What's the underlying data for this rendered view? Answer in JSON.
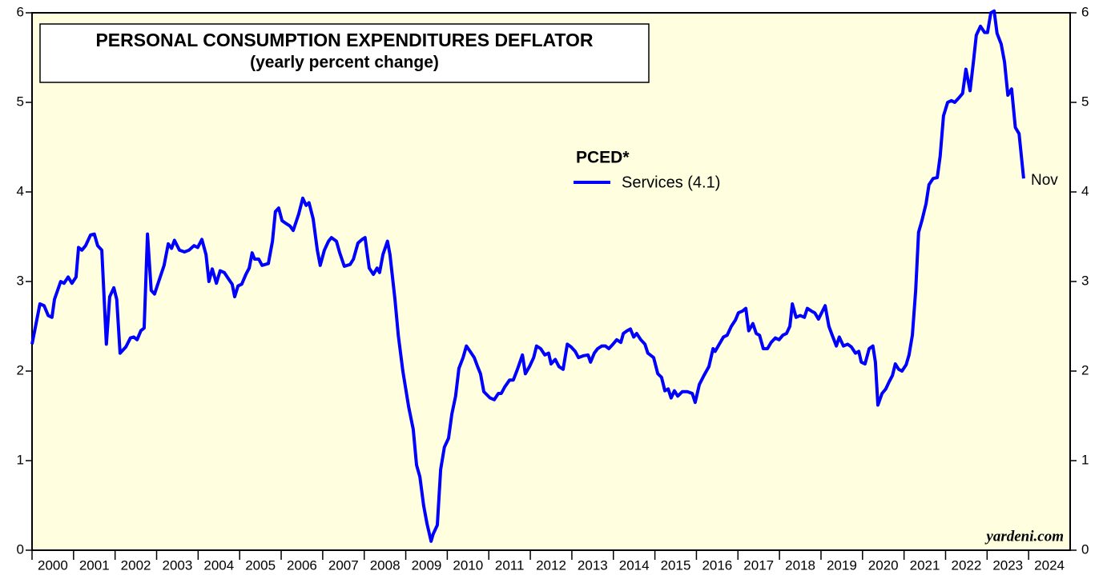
{
  "chart_data": {
    "type": "line",
    "title": "PERSONAL CONSUMPTION EXPENDITURES DEFLATOR",
    "subtitle": "(yearly percent change)",
    "legend_title": "PCED*",
    "annotations": [
      "Nov",
      "yardeni.com"
    ],
    "xlim": [
      2000,
      2025
    ],
    "xticks": [
      2000,
      2001,
      2002,
      2003,
      2004,
      2005,
      2006,
      2007,
      2008,
      2009,
      2010,
      2011,
      2012,
      2013,
      2014,
      2015,
      2016,
      2017,
      2018,
      2019,
      2020,
      2021,
      2022,
      2023,
      2024
    ],
    "ylim": [
      0,
      6
    ],
    "yticks": [
      0,
      1,
      2,
      3,
      4,
      5,
      6
    ],
    "y2lim": [
      0,
      6
    ],
    "y2ticks": [
      0,
      1,
      2,
      3,
      4,
      5,
      6
    ],
    "x": [
      2000.0,
      2000.19,
      2000.29,
      2000.39,
      2000.48,
      2000.54,
      2000.69,
      2000.77,
      2000.87,
      2000.96,
      2001.06,
      2001.12,
      2001.2,
      2001.29,
      2001.41,
      2001.5,
      2001.58,
      2001.68,
      2001.79,
      2001.87,
      2001.97,
      2002.04,
      2002.12,
      2002.26,
      2002.37,
      2002.45,
      2002.53,
      2002.62,
      2002.7,
      2002.78,
      2002.87,
      2002.95,
      2003.05,
      2003.18,
      2003.28,
      2003.36,
      2003.43,
      2003.55,
      2003.67,
      2003.78,
      2003.9,
      2003.99,
      2004.09,
      2004.19,
      2004.26,
      2004.34,
      2004.44,
      2004.53,
      2004.63,
      2004.73,
      2004.82,
      2004.88,
      2004.96,
      2005.05,
      2005.15,
      2005.23,
      2005.3,
      2005.36,
      2005.46,
      2005.54,
      2005.69,
      2005.79,
      2005.86,
      2005.94,
      2006.02,
      2006.11,
      2006.21,
      2006.29,
      2006.42,
      2006.52,
      2006.6,
      2006.67,
      2006.77,
      2006.87,
      2006.94,
      2007.04,
      2007.14,
      2007.21,
      2007.33,
      2007.41,
      2007.52,
      2007.66,
      2007.74,
      2007.85,
      2007.95,
      2008.02,
      2008.12,
      2008.22,
      2008.31,
      2008.37,
      2008.45,
      2008.56,
      2008.62,
      2008.74,
      2008.82,
      2008.93,
      2009.07,
      2009.18,
      2009.26,
      2009.34,
      2009.43,
      2009.51,
      2009.61,
      2009.66,
      2009.76,
      2009.84,
      2009.93,
      2010.03,
      2010.11,
      2010.2,
      2010.28,
      2010.38,
      2010.46,
      2010.55,
      2010.65,
      2010.73,
      2010.8,
      2010.88,
      2011.03,
      2011.13,
      2011.23,
      2011.3,
      2011.38,
      2011.5,
      2011.59,
      2011.69,
      2011.81,
      2011.88,
      2011.98,
      2012.08,
      2012.15,
      2012.25,
      2012.35,
      2012.44,
      2012.5,
      2012.6,
      2012.69,
      2012.79,
      2012.89,
      2012.98,
      2013.08,
      2013.16,
      2013.27,
      2013.39,
      2013.45,
      2013.54,
      2013.62,
      2013.72,
      2013.81,
      2013.89,
      2013.99,
      2014.08,
      2014.18,
      2014.24,
      2014.33,
      2014.41,
      2014.49,
      2014.56,
      2014.66,
      2014.76,
      2014.83,
      2014.97,
      2015.07,
      2015.16,
      2015.24,
      2015.32,
      2015.39,
      2015.47,
      2015.55,
      2015.66,
      2015.78,
      2015.9,
      2015.97,
      2016.07,
      2016.18,
      2016.3,
      2016.4,
      2016.45,
      2016.55,
      2016.65,
      2016.74,
      2016.84,
      2016.94,
      2017.01,
      2017.11,
      2017.19,
      2017.26,
      2017.36,
      2017.44,
      2017.52,
      2017.61,
      2017.71,
      2017.8,
      2017.9,
      2017.99,
      2018.08,
      2018.17,
      2018.25,
      2018.31,
      2018.4,
      2018.5,
      2018.6,
      2018.67,
      2018.77,
      2018.85,
      2018.94,
      2019.1,
      2019.19,
      2019.27,
      2019.37,
      2019.44,
      2019.54,
      2019.64,
      2019.73,
      2019.83,
      2019.91,
      2019.97,
      2020.06,
      2020.16,
      2020.25,
      2020.31,
      2020.37,
      2020.47,
      2020.56,
      2020.64,
      2020.72,
      2020.79,
      2020.87,
      2020.95,
      2021.05,
      2021.12,
      2021.2,
      2021.28,
      2021.35,
      2021.43,
      2021.53,
      2021.6,
      2021.7,
      2021.8,
      2021.87,
      2021.95,
      2022.05,
      2022.14,
      2022.22,
      2022.32,
      2022.41,
      2022.49,
      2022.59,
      2022.67,
      2022.74,
      2022.84,
      2022.94,
      2023.01,
      2023.09,
      2023.17,
      2023.24,
      2023.34,
      2023.42,
      2023.5,
      2023.59,
      2023.68,
      2023.77,
      2023.88
    ],
    "series": [
      {
        "name": "Services (4.1)",
        "color": "#0000ff",
        "values": [
          2.3,
          2.75,
          2.73,
          2.62,
          2.6,
          2.8,
          3.0,
          2.98,
          3.05,
          2.98,
          3.05,
          3.38,
          3.35,
          3.4,
          3.52,
          3.53,
          3.4,
          3.35,
          2.3,
          2.83,
          2.93,
          2.8,
          2.2,
          2.27,
          2.37,
          2.38,
          2.35,
          2.45,
          2.48,
          3.53,
          2.9,
          2.86,
          3.0,
          3.18,
          3.42,
          3.37,
          3.46,
          3.35,
          3.33,
          3.35,
          3.4,
          3.38,
          3.47,
          3.3,
          3.0,
          3.14,
          2.98,
          3.12,
          3.1,
          3.03,
          2.97,
          2.83,
          2.95,
          2.97,
          3.08,
          3.15,
          3.32,
          3.25,
          3.25,
          3.18,
          3.2,
          3.45,
          3.78,
          3.82,
          3.68,
          3.65,
          3.62,
          3.57,
          3.75,
          3.93,
          3.85,
          3.88,
          3.7,
          3.35,
          3.18,
          3.35,
          3.45,
          3.49,
          3.45,
          3.32,
          3.17,
          3.19,
          3.25,
          3.43,
          3.47,
          3.49,
          3.15,
          3.08,
          3.15,
          3.1,
          3.3,
          3.45,
          3.3,
          2.8,
          2.4,
          2.0,
          1.6,
          1.35,
          0.95,
          0.82,
          0.5,
          0.3,
          0.1,
          0.18,
          0.28,
          0.9,
          1.15,
          1.25,
          1.52,
          1.72,
          2.03,
          2.15,
          2.28,
          2.22,
          2.15,
          2.05,
          1.97,
          1.77,
          1.7,
          1.68,
          1.75,
          1.75,
          1.82,
          1.9,
          1.9,
          2.02,
          2.18,
          1.97,
          2.05,
          2.15,
          2.28,
          2.25,
          2.18,
          2.2,
          2.08,
          2.13,
          2.05,
          2.02,
          2.3,
          2.27,
          2.22,
          2.15,
          2.17,
          2.18,
          2.1,
          2.2,
          2.25,
          2.28,
          2.28,
          2.25,
          2.3,
          2.35,
          2.32,
          2.42,
          2.45,
          2.47,
          2.38,
          2.42,
          2.35,
          2.3,
          2.2,
          2.15,
          1.97,
          1.93,
          1.78,
          1.8,
          1.7,
          1.78,
          1.72,
          1.77,
          1.77,
          1.75,
          1.65,
          1.85,
          1.95,
          2.05,
          2.25,
          2.22,
          2.3,
          2.38,
          2.4,
          2.5,
          2.57,
          2.65,
          2.67,
          2.7,
          2.45,
          2.53,
          2.42,
          2.4,
          2.25,
          2.25,
          2.32,
          2.37,
          2.35,
          2.4,
          2.42,
          2.5,
          2.75,
          2.6,
          2.62,
          2.6,
          2.7,
          2.67,
          2.65,
          2.58,
          2.73,
          2.5,
          2.4,
          2.28,
          2.38,
          2.28,
          2.3,
          2.27,
          2.2,
          2.22,
          2.1,
          2.08,
          2.25,
          2.28,
          2.1,
          1.62,
          1.75,
          1.8,
          1.88,
          1.95,
          2.08,
          2.02,
          2.0,
          2.07,
          2.18,
          2.4,
          2.9,
          3.55,
          3.68,
          3.87,
          4.08,
          4.15,
          4.16,
          4.4,
          4.85,
          5.0,
          5.02,
          5.0,
          5.05,
          5.1,
          5.37,
          5.13,
          5.45,
          5.75,
          5.85,
          5.78,
          5.78,
          6.0,
          6.02,
          5.77,
          5.65,
          5.45,
          5.08,
          5.15,
          4.72,
          4.65,
          4.15
        ]
      }
    ]
  }
}
